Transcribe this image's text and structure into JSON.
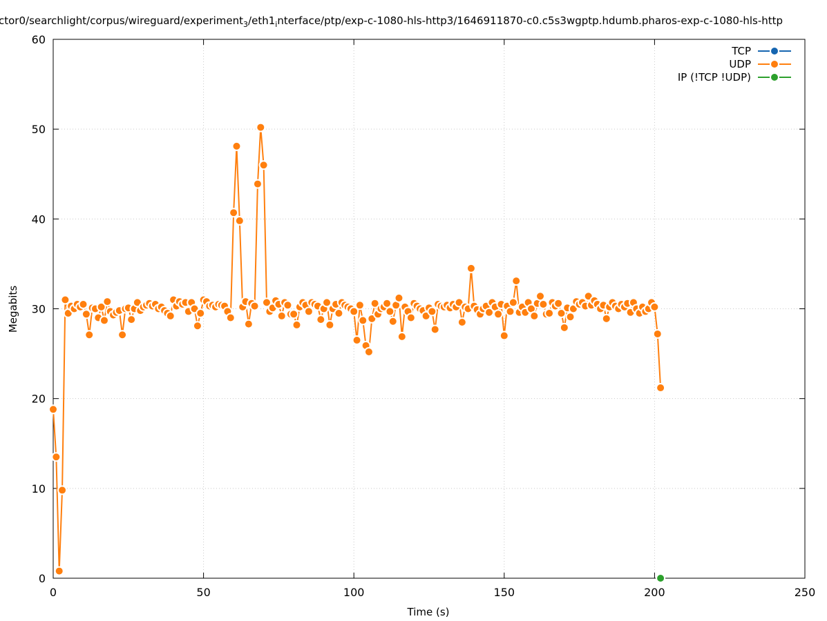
{
  "chart_data": {
    "type": "line",
    "title": [
      "ctor0/searchlight/corpus/wireguard/experiment",
      "3",
      "/eth1",
      "i",
      "nterface/ptp/exp-c-1080-hls-http3/1646911870-c0.c5s3wgptp.hdumb.pharos-exp-c-1080-hls-http"
    ],
    "xlabel": "Time (s)",
    "ylabel": "Megabits",
    "xlim": [
      0,
      250
    ],
    "ylim": [
      0,
      60
    ],
    "xticks": [
      0,
      50,
      100,
      150,
      200,
      250
    ],
    "yticks": [
      0,
      10,
      20,
      30,
      40,
      50,
      60
    ],
    "grid": true,
    "legend": "top-right",
    "series": [
      {
        "name": "TCP",
        "color": "#1565b0",
        "x": [],
        "values": []
      },
      {
        "name": "UDP",
        "color": "#ff7f0e",
        "x": [
          0,
          1,
          2,
          3,
          4,
          5,
          6,
          7,
          8,
          9,
          10,
          11,
          12,
          13,
          14,
          15,
          16,
          17,
          18,
          19,
          20,
          21,
          22,
          23,
          24,
          25,
          26,
          27,
          28,
          29,
          30,
          31,
          32,
          33,
          34,
          35,
          36,
          37,
          38,
          39,
          40,
          41,
          42,
          43,
          44,
          45,
          46,
          47,
          48,
          49,
          50,
          51,
          52,
          53,
          54,
          55,
          56,
          57,
          58,
          59,
          60,
          61,
          62,
          63,
          64,
          65,
          66,
          67,
          68,
          69,
          70,
          71,
          72,
          73,
          74,
          75,
          76,
          77,
          78,
          79,
          80,
          81,
          82,
          83,
          84,
          85,
          86,
          87,
          88,
          89,
          90,
          91,
          92,
          93,
          94,
          95,
          96,
          97,
          98,
          99,
          100,
          101,
          102,
          103,
          104,
          105,
          106,
          107,
          108,
          109,
          110,
          111,
          112,
          113,
          114,
          115,
          116,
          117,
          118,
          119,
          120,
          121,
          122,
          123,
          124,
          125,
          126,
          127,
          128,
          129,
          130,
          131,
          132,
          133,
          134,
          135,
          136,
          137,
          138,
          139,
          140,
          141,
          142,
          143,
          144,
          145,
          146,
          147,
          148,
          149,
          150,
          151,
          152,
          153,
          154,
          155,
          156,
          157,
          158,
          159,
          160,
          161,
          162,
          163,
          164,
          165,
          166,
          167,
          168,
          169,
          170,
          171,
          172,
          173,
          174,
          175,
          176,
          177,
          178,
          179,
          180,
          181,
          182,
          183,
          184,
          185,
          186,
          187,
          188,
          189,
          190,
          191,
          192,
          193,
          194,
          195,
          196,
          197,
          198,
          199,
          200,
          201,
          202
        ],
        "values": [
          18.8,
          13.5,
          0.8,
          9.8,
          31.0,
          29.5,
          30.3,
          30.0,
          30.5,
          30.2,
          30.5,
          29.4,
          27.1,
          30.1,
          30.0,
          29.0,
          30.2,
          28.7,
          30.8,
          29.7,
          29.3,
          29.6,
          29.8,
          27.1,
          30.0,
          30.1,
          28.8,
          30.0,
          30.7,
          29.8,
          30.2,
          30.4,
          30.6,
          30.3,
          30.5,
          30.0,
          30.2,
          29.8,
          29.5,
          29.2,
          31.0,
          30.3,
          30.8,
          30.5,
          30.7,
          29.7,
          30.7,
          30.0,
          28.1,
          29.5,
          31.0,
          30.8,
          30.3,
          30.4,
          30.2,
          30.5,
          30.4,
          30.3,
          29.7,
          29.0,
          40.7,
          48.1,
          39.8,
          30.2,
          30.8,
          28.3,
          30.6,
          30.3,
          43.9,
          50.2,
          46.0,
          30.7,
          29.7,
          30.1,
          30.9,
          30.5,
          29.2,
          30.7,
          30.4,
          29.4,
          29.4,
          28.2,
          30.2,
          30.7,
          30.4,
          29.7,
          30.7,
          30.5,
          30.3,
          28.8,
          30.0,
          30.7,
          28.2,
          30.0,
          30.5,
          29.5,
          30.7,
          30.4,
          30.2,
          30.0,
          29.7,
          26.5,
          30.4,
          28.7,
          25.9,
          25.2,
          28.9,
          30.6,
          29.4,
          30.0,
          30.2,
          30.6,
          29.7,
          28.6,
          30.4,
          31.2,
          26.9,
          30.2,
          29.7,
          29.0,
          30.6,
          30.3,
          30.0,
          29.8,
          29.2,
          30.1,
          29.7,
          27.7,
          30.5,
          30.3,
          30.2,
          30.4,
          30.1,
          30.5,
          30.2,
          30.7,
          28.5,
          30.2,
          30.0,
          34.5,
          30.3,
          29.9,
          29.4,
          30.0,
          30.3,
          29.6,
          30.7,
          30.2,
          29.4,
          30.5,
          27.0,
          30.3,
          29.7,
          30.7,
          33.1,
          29.6,
          30.2,
          29.6,
          30.7,
          30.0,
          29.2,
          30.6,
          31.4,
          30.5,
          29.4,
          29.5,
          30.7,
          30.3,
          30.6,
          29.5,
          27.9,
          30.1,
          29.1,
          30.0,
          30.8,
          30.5,
          30.7,
          30.3,
          31.4,
          30.4,
          30.9,
          30.5,
          30.0,
          30.4,
          28.9,
          30.2,
          30.7,
          30.3,
          30.0,
          30.5,
          30.2,
          30.6,
          29.6,
          30.7,
          30.0,
          29.5,
          30.2,
          29.7,
          30.0,
          30.7,
          30.2,
          27.2,
          21.2
        ]
      },
      {
        "name": "IP (!TCP  !UDP)",
        "color": "#2ca02c",
        "x": [
          202
        ],
        "values": [
          0
        ]
      }
    ]
  }
}
